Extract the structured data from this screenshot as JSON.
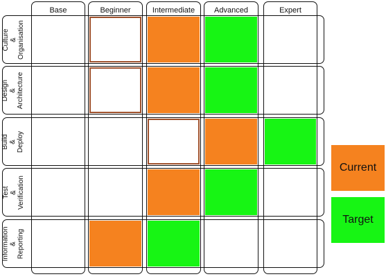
{
  "levels": [
    "Base",
    "Beginner",
    "Intermediate",
    "Advanced",
    "Expert"
  ],
  "categories": [
    "Culture\n&\nOrganisation",
    "Design\n&\nArchitecture",
    "Build\n&\nDeploy",
    "Test\n&\nVerification",
    "Information\n&\nReporting"
  ],
  "cells": [
    [
      "none",
      "outline",
      "current",
      "target",
      "none"
    ],
    [
      "none",
      "outline",
      "current",
      "target",
      "none"
    ],
    [
      "none",
      "none",
      "outline",
      "current",
      "target"
    ],
    [
      "none",
      "none",
      "current",
      "target",
      "none"
    ],
    [
      "none",
      "current",
      "target",
      "none",
      "none"
    ]
  ],
  "legend": {
    "current": "Current",
    "target": "Target"
  },
  "colors": {
    "current": "#f5821f",
    "target": "#17f514",
    "outline": "#a0522d"
  }
}
